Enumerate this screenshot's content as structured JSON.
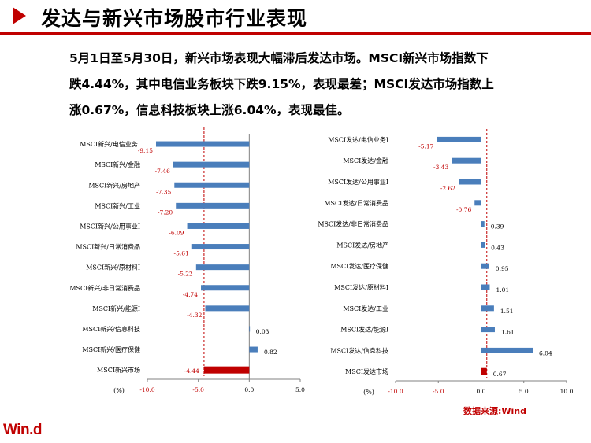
{
  "page": {
    "title": "发达与新兴市场股市行业表现",
    "summary_lines": [
      "5月1日至5月30日，新兴市场表现大幅滞后发达市场。MSCI新兴市场指数下",
      "跌4.44%，其中电信业务板块下跌9.15%，表现最差；MSCI发达市场指数上",
      "涨0.67%，信息科技板块上涨6.04%，表现最佳。"
    ],
    "source": "数据来源:Wind",
    "logo": "Win.d"
  },
  "colors": {
    "bar": "#4a7ebb",
    "highlight": "#c00000",
    "negative_label": "#c00000",
    "positive_label": "#000000",
    "ref_line": "#c00000"
  },
  "chart_data": [
    {
      "type": "bar",
      "orientation": "horizontal",
      "categories": [
        "MSCI新兴/电信业务Ⅰ",
        "MSCI新兴/金融",
        "MSCI新兴/房地产",
        "MSCI新兴/工业",
        "MSCI新兴/公用事业Ⅰ",
        "MSCI新兴/日常消费品",
        "MSCI新兴/原材料Ⅰ",
        "MSCI新兴/非日常消费品",
        "MSCI新兴/能源Ⅰ",
        "MSCI新兴/信息科技",
        "MSCI新兴/医疗保健",
        "MSCI新兴市场"
      ],
      "values": [
        -9.15,
        -7.46,
        -7.35,
        -7.2,
        -6.09,
        -5.61,
        -5.22,
        -4.74,
        -4.32,
        0.03,
        0.82,
        -4.44
      ],
      "labels": [
        "-9.15",
        "-7.46",
        "-7.35",
        "-7.20",
        "-6.09",
        "-5.61",
        "-5.22",
        "-4.74",
        "-4.32",
        "0.03",
        "0.82",
        "-4.44"
      ],
      "highlight_index": 11,
      "reference_value": -4.44,
      "xlim": [
        -10,
        5
      ],
      "xticks": [
        "-10.0",
        "-5.0",
        "0.0",
        "5.0"
      ],
      "xlabel": "(%)"
    },
    {
      "type": "bar",
      "orientation": "horizontal",
      "categories": [
        "MSCI发达/电信业务Ⅰ",
        "MSCI发达/金融",
        "MSCI发达/公用事业Ⅰ",
        "MSCI发达/日常消费品",
        "MSCI发达/非日常消费品",
        "MSCI发达/房地产",
        "MSCI发达/医疗保健",
        "MSCI发达/原材料Ⅰ",
        "MSCI发达/工业",
        "MSCI发达/能源Ⅰ",
        "MSCI发达/信息科技",
        "MSCI发达市场"
      ],
      "values": [
        -5.17,
        -3.43,
        -2.62,
        -0.76,
        0.39,
        0.43,
        0.95,
        1.01,
        1.51,
        1.61,
        6.04,
        0.67
      ],
      "labels": [
        "-5.17",
        "-3.43",
        "-2.62",
        "-0.76",
        "0.39",
        "0.43",
        "0.95",
        "1.01",
        "1.51",
        "1.61",
        "6.04",
        "0.67"
      ],
      "highlight_index": 11,
      "reference_value": 0.67,
      "xlim": [
        -10,
        10
      ],
      "xticks": [
        "-10.0",
        "-5.0",
        "0.0",
        "5.0",
        "10.0"
      ],
      "xlabel": "(%)"
    }
  ]
}
